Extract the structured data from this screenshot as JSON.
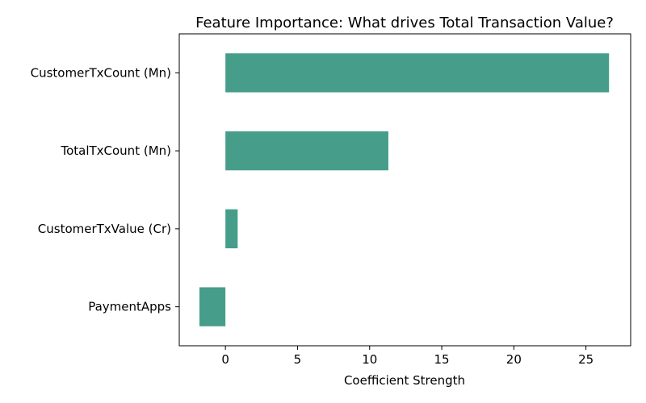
{
  "chart_data": {
    "type": "bar",
    "orientation": "horizontal",
    "title": "Feature Importance: What drives Total Transaction Value?",
    "xlabel": "Coefficient Strength",
    "ylabel": "",
    "categories": [
      "CustomerTxCount (Mn)",
      "TotalTxCount (Mn)",
      "CustomerTxValue (Cr)",
      "PaymentApps"
    ],
    "values": [
      26.6,
      11.3,
      0.85,
      -1.8
    ],
    "xlim": [
      -3.2,
      28.1
    ],
    "xticks": [
      0,
      5,
      10,
      15,
      20,
      25
    ],
    "grid": false,
    "legend": "none",
    "bar_color": "#469e8a"
  }
}
